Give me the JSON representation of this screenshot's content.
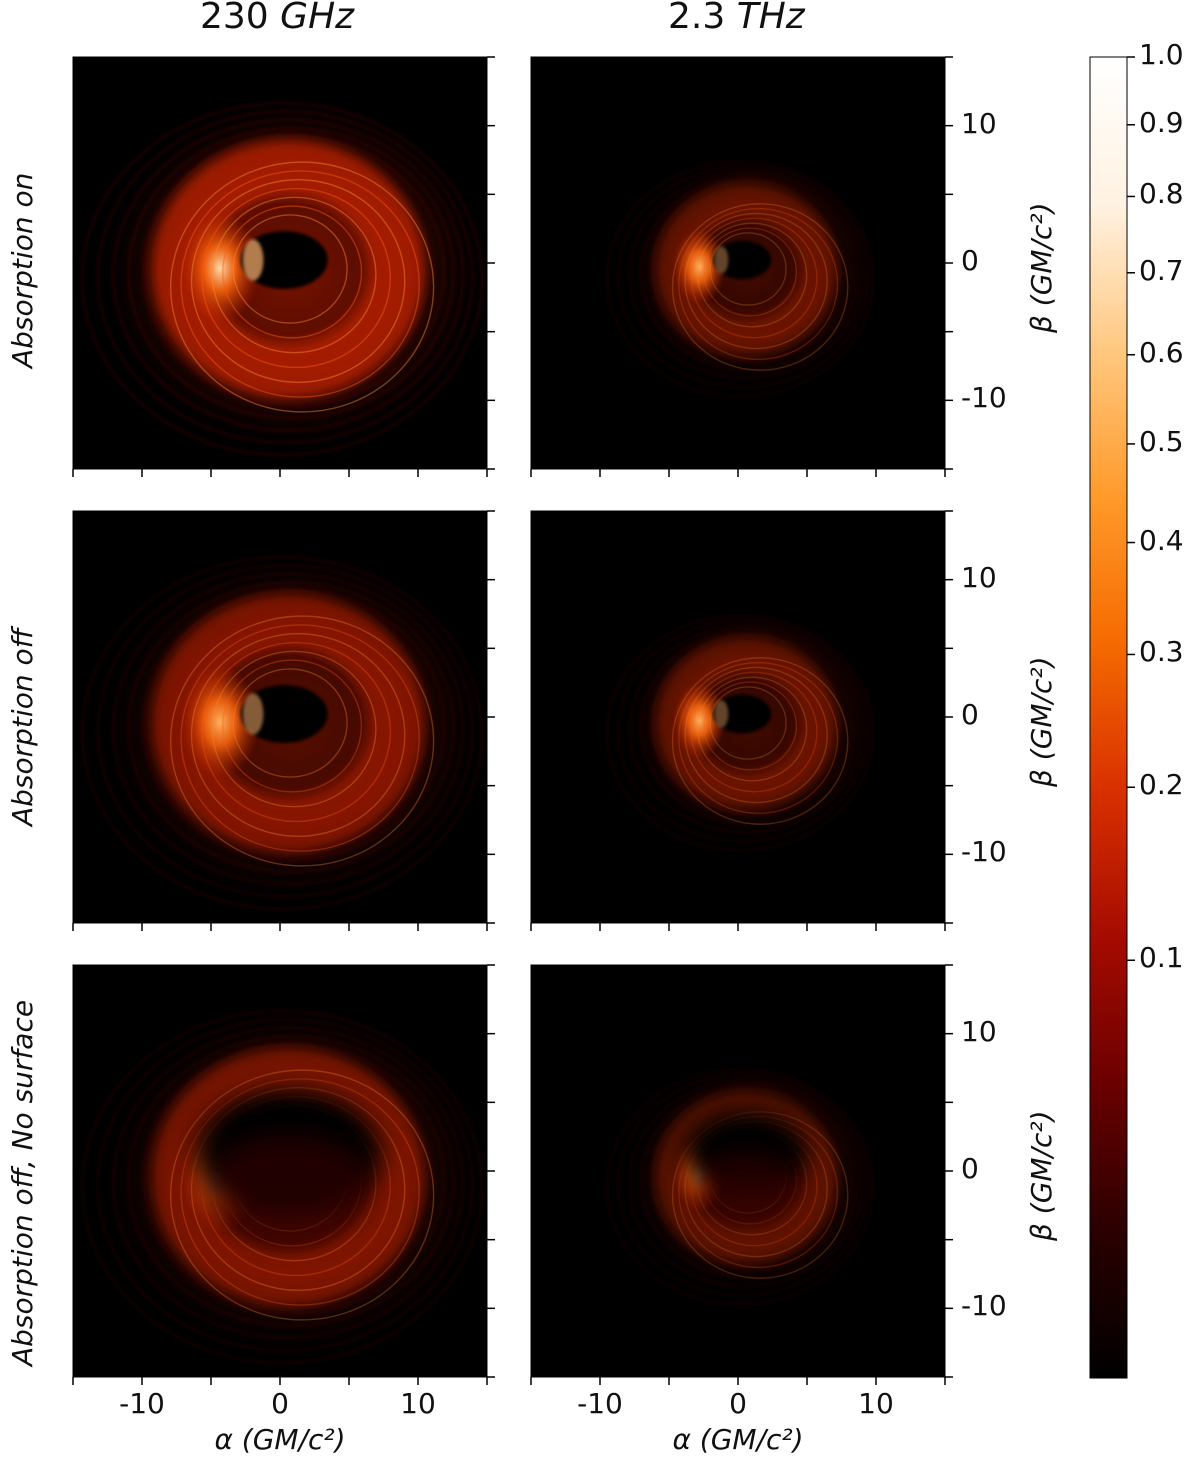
{
  "columns": [
    {
      "value": "230",
      "unit": "GHz"
    },
    {
      "value": "2.3",
      "unit": "THz"
    }
  ],
  "rows": [
    "Absorption on",
    "Absorption off",
    "Absorption off, No surface"
  ],
  "xaxis": {
    "label": "α (GM/c²)",
    "ticks": [
      "-10",
      "0",
      "10"
    ]
  },
  "yaxis": {
    "label": "β (GM/c²)",
    "ticks": [
      "10",
      "0",
      "-10"
    ]
  },
  "colorbar": {
    "ticks": [
      "1.0",
      "0.9",
      "0.8",
      "0.7",
      "0.6",
      "0.5",
      "0.4",
      "0.3",
      "0.2",
      "0.1"
    ],
    "values": [
      1.0,
      0.9,
      0.8,
      0.7,
      0.6,
      0.5,
      0.4,
      0.3,
      0.2,
      0.1
    ],
    "colors": [
      "#000000",
      "#2a0000",
      "#6a0000",
      "#a50b00",
      "#d83000",
      "#f56a00",
      "#ff9a2a",
      "#ffc880",
      "#fff2e2",
      "#ffffff"
    ]
  },
  "images": [
    {
      "row": 0,
      "col": 0,
      "brightness": 1.0,
      "ring_radius": 7.5,
      "shadow": "small"
    },
    {
      "row": 0,
      "col": 1,
      "brightness": 0.55,
      "ring_radius": 5.0,
      "shadow": "small"
    },
    {
      "row": 1,
      "col": 0,
      "brightness": 0.75,
      "ring_radius": 7.5,
      "shadow": "small"
    },
    {
      "row": 1,
      "col": 1,
      "brightness": 0.55,
      "ring_radius": 5.0,
      "shadow": "small"
    },
    {
      "row": 2,
      "col": 0,
      "brightness": 0.7,
      "ring_radius": 7.5,
      "shadow": "large"
    },
    {
      "row": 2,
      "col": 1,
      "brightness": 0.5,
      "ring_radius": 5.0,
      "shadow": "large"
    }
  ]
}
